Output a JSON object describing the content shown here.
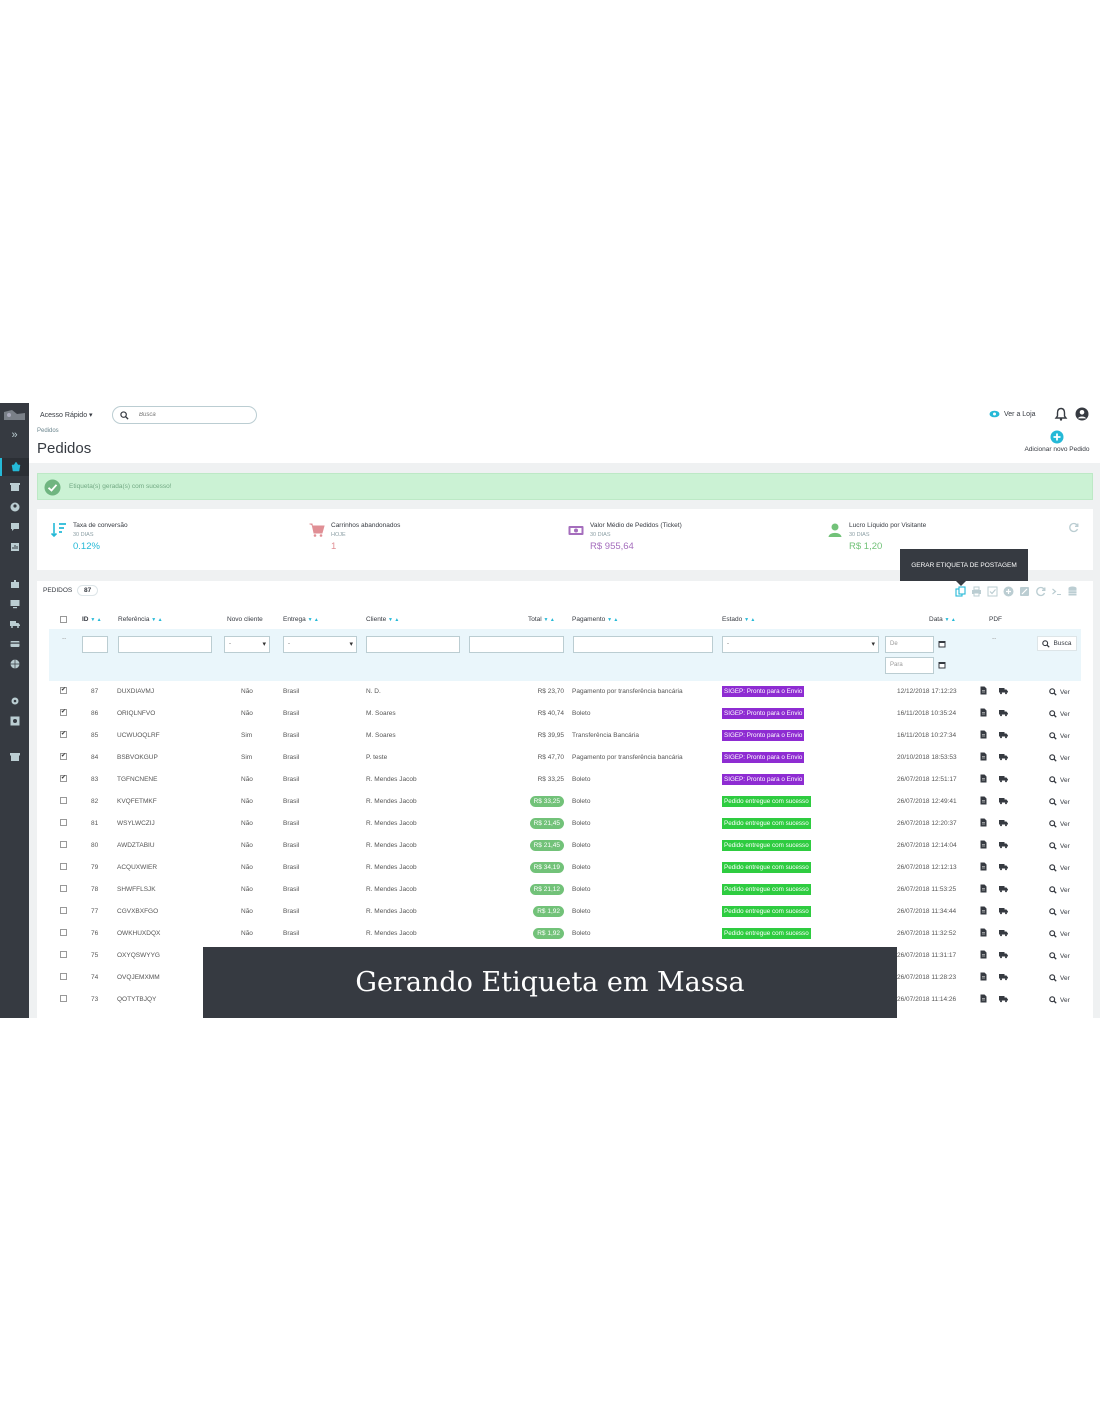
{
  "header": {
    "quick_access": "Acesso Rápido ▾",
    "search_placeholder": "Busca",
    "breadcrumb": "Pedidos",
    "title": "Pedidos",
    "view_store": "Ver a Loja",
    "add_order": "Adicionar novo Pedido"
  },
  "alert": {
    "message": "Etiqueta(s) gerada(s) com sucesso!"
  },
  "kpis": [
    {
      "label": "Taxa de conversão",
      "period": "30 DIAS",
      "value": "0.12%",
      "color": "#25b9d7"
    },
    {
      "label": "Carrinhos abandonados",
      "period": "HOJE",
      "value": "1",
      "color": "#e08f95"
    },
    {
      "label": "Valor Médio de Pedidos (Ticket)",
      "period": "30 DIAS",
      "value": "R$ 955,64",
      "color": "#a56ebd"
    },
    {
      "label": "Lucro Líquido por Visitante",
      "period": "30 DIAS",
      "value": "R$ 1,20",
      "color": "#72c279"
    }
  ],
  "tooltip": "GERAR ETIQUETA DE POSTAGEM",
  "orders": {
    "title": "PEDIDOS",
    "count": "87",
    "columns": {
      "id": "ID",
      "reference": "Referência",
      "new_client": "Novo cliente",
      "delivery": "Entrega",
      "client": "Cliente",
      "total": "Total",
      "payment": "Pagamento",
      "state": "Estado",
      "date": "Data",
      "pdf": "PDF"
    },
    "filters": {
      "new_client": "-",
      "delivery": "-",
      "state": "-",
      "date_from": "De",
      "date_to": "Para",
      "pdf": "--",
      "search": "Busca"
    },
    "colors": {
      "sigep": "#8e2cd2",
      "delivered": "#2ecc40",
      "accent": "#25b9d7"
    },
    "rows": [
      {
        "checked": true,
        "id": "87",
        "ref": "DUXDIAVMJ",
        "new": "Não",
        "delivery": "Brasil",
        "client": "N. D.",
        "total": "R$ 23,70",
        "pill": false,
        "payment": "Pagamento por transferência bancária",
        "state": "SIGEP: Pronto para o Envio",
        "state_type": "sigep",
        "date": "12/12/2018 17:12:23"
      },
      {
        "checked": true,
        "id": "86",
        "ref": "ORIQLNFVO",
        "new": "Não",
        "delivery": "Brasil",
        "client": "M. Soares",
        "total": "R$ 40,74",
        "pill": false,
        "payment": "Boleto",
        "state": "SIGEP: Pronto para o Envio",
        "state_type": "sigep",
        "date": "16/11/2018 10:35:24"
      },
      {
        "checked": true,
        "id": "85",
        "ref": "UCWUOQLRF",
        "new": "Sim",
        "delivery": "Brasil",
        "client": "M. Soares",
        "total": "R$ 39,95",
        "pill": false,
        "payment": "Transferência Bancária",
        "state": "SIGEP: Pronto para o Envio",
        "state_type": "sigep",
        "date": "16/11/2018 10:27:34"
      },
      {
        "checked": true,
        "id": "84",
        "ref": "BSBVOKGUP",
        "new": "Sim",
        "delivery": "Brasil",
        "client": "P. teste",
        "total": "R$ 47,70",
        "pill": false,
        "payment": "Pagamento por transferência bancária",
        "state": "SIGEP: Pronto para o Envio",
        "state_type": "sigep",
        "date": "20/10/2018 18:53:53"
      },
      {
        "checked": true,
        "id": "83",
        "ref": "TGFNCNENE",
        "new": "Não",
        "delivery": "Brasil",
        "client": "R. Mendes Jacob",
        "total": "R$ 33,25",
        "pill": false,
        "payment": "Boleto",
        "state": "SIGEP: Pronto para o Envio",
        "state_type": "sigep",
        "date": "26/07/2018 12:51:17"
      },
      {
        "checked": false,
        "id": "82",
        "ref": "KVQFETMKF",
        "new": "Não",
        "delivery": "Brasil",
        "client": "R. Mendes Jacob",
        "total": "R$ 33,25",
        "pill": true,
        "payment": "Boleto",
        "state": "Pedido entregue com sucesso",
        "state_type": "delivered",
        "date": "26/07/2018 12:49:41"
      },
      {
        "checked": false,
        "id": "81",
        "ref": "WSYLWCZIJ",
        "new": "Não",
        "delivery": "Brasil",
        "client": "R. Mendes Jacob",
        "total": "R$ 21,45",
        "pill": true,
        "payment": "Boleto",
        "state": "Pedido entregue com sucesso",
        "state_type": "delivered",
        "date": "26/07/2018 12:20:37"
      },
      {
        "checked": false,
        "id": "80",
        "ref": "AWDZTABIU",
        "new": "Não",
        "delivery": "Brasil",
        "client": "R. Mendes Jacob",
        "total": "R$ 21,45",
        "pill": true,
        "payment": "Boleto",
        "state": "Pedido entregue com sucesso",
        "state_type": "delivered",
        "date": "26/07/2018 12:14:04"
      },
      {
        "checked": false,
        "id": "79",
        "ref": "ACQUXWIER",
        "new": "Não",
        "delivery": "Brasil",
        "client": "R. Mendes Jacob",
        "total": "R$ 34,19",
        "pill": true,
        "payment": "Boleto",
        "state": "Pedido entregue com sucesso",
        "state_type": "delivered",
        "date": "26/07/2018 12:12:13"
      },
      {
        "checked": false,
        "id": "78",
        "ref": "SHWFFLSJK",
        "new": "Não",
        "delivery": "Brasil",
        "client": "R. Mendes Jacob",
        "total": "R$ 21,12",
        "pill": true,
        "payment": "Boleto",
        "state": "Pedido entregue com sucesso",
        "state_type": "delivered",
        "date": "26/07/2018 11:53:25"
      },
      {
        "checked": false,
        "id": "77",
        "ref": "CGVXBXFGO",
        "new": "Não",
        "delivery": "Brasil",
        "client": "R. Mendes Jacob",
        "total": "R$ 1,92",
        "pill": true,
        "payment": "Boleto",
        "state": "Pedido entregue com sucesso",
        "state_type": "delivered",
        "date": "26/07/2018 11:34:44"
      },
      {
        "checked": false,
        "id": "76",
        "ref": "OWKHUXDQX",
        "new": "Não",
        "delivery": "Brasil",
        "client": "R. Mendes Jacob",
        "total": "R$ 1,92",
        "pill": true,
        "payment": "Boleto",
        "state": "Pedido entregue com sucesso",
        "state_type": "delivered",
        "date": "26/07/2018 11:32:52"
      },
      {
        "checked": false,
        "id": "75",
        "ref": "OXYQSWYYG",
        "new": "",
        "delivery": "",
        "client": "",
        "total": "",
        "pill": false,
        "payment": "",
        "state": "",
        "state_type": "",
        "date": "26/07/2018 11:31:17"
      },
      {
        "checked": false,
        "id": "74",
        "ref": "OVQJEMXMM",
        "new": "",
        "delivery": "",
        "client": "",
        "total": "",
        "pill": false,
        "payment": "",
        "state": "",
        "state_type": "",
        "date": "26/07/2018 11:28:23"
      },
      {
        "checked": false,
        "id": "73",
        "ref": "QOTYTBJQY",
        "new": "",
        "delivery": "",
        "client": "",
        "total": "",
        "pill": false,
        "payment": "",
        "state": "",
        "state_type": "",
        "date": "26/07/2018 11:14:26"
      }
    ],
    "view_label": "Ver"
  },
  "banner": {
    "text": "Gerando Etiqueta em Massa"
  }
}
